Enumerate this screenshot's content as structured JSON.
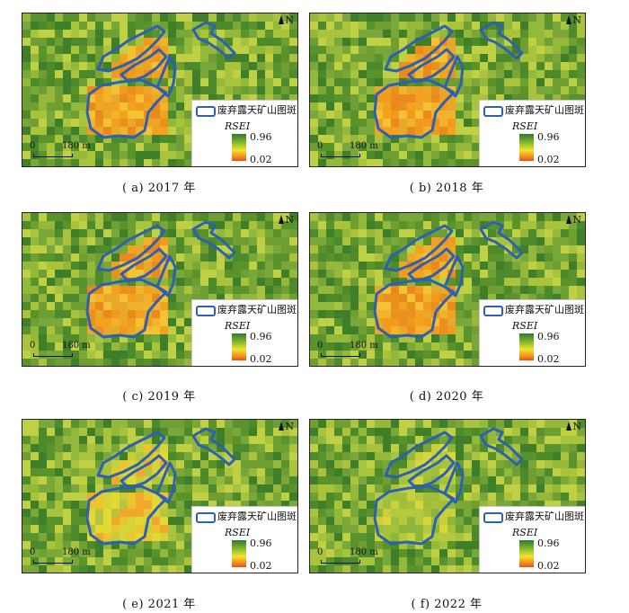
{
  "legend": {
    "patch_label": "废弃露天矿山图斑",
    "index_label": "RSEI",
    "max": "0.96",
    "min": "0.02"
  },
  "north": "N",
  "scale": {
    "zero": "0",
    "distance": "180 m"
  },
  "colors": {
    "boundary": "#2f5fb0",
    "high": "#2e7a2e",
    "mid": "#f2e32a",
    "low": "#e8501b"
  },
  "panels": [
    {
      "caption": "( a)  2017 年",
      "tone": "degraded"
    },
    {
      "caption": "( b)  2018 年",
      "tone": "degraded"
    },
    {
      "caption": "( c)  2019 年",
      "tone": "degraded"
    },
    {
      "caption": "( d)  2020 年",
      "tone": "degraded"
    },
    {
      "caption": "( e)  2021 年",
      "tone": "recovering"
    },
    {
      "caption": "( f)  2022 年",
      "tone": "recovered"
    }
  ]
}
